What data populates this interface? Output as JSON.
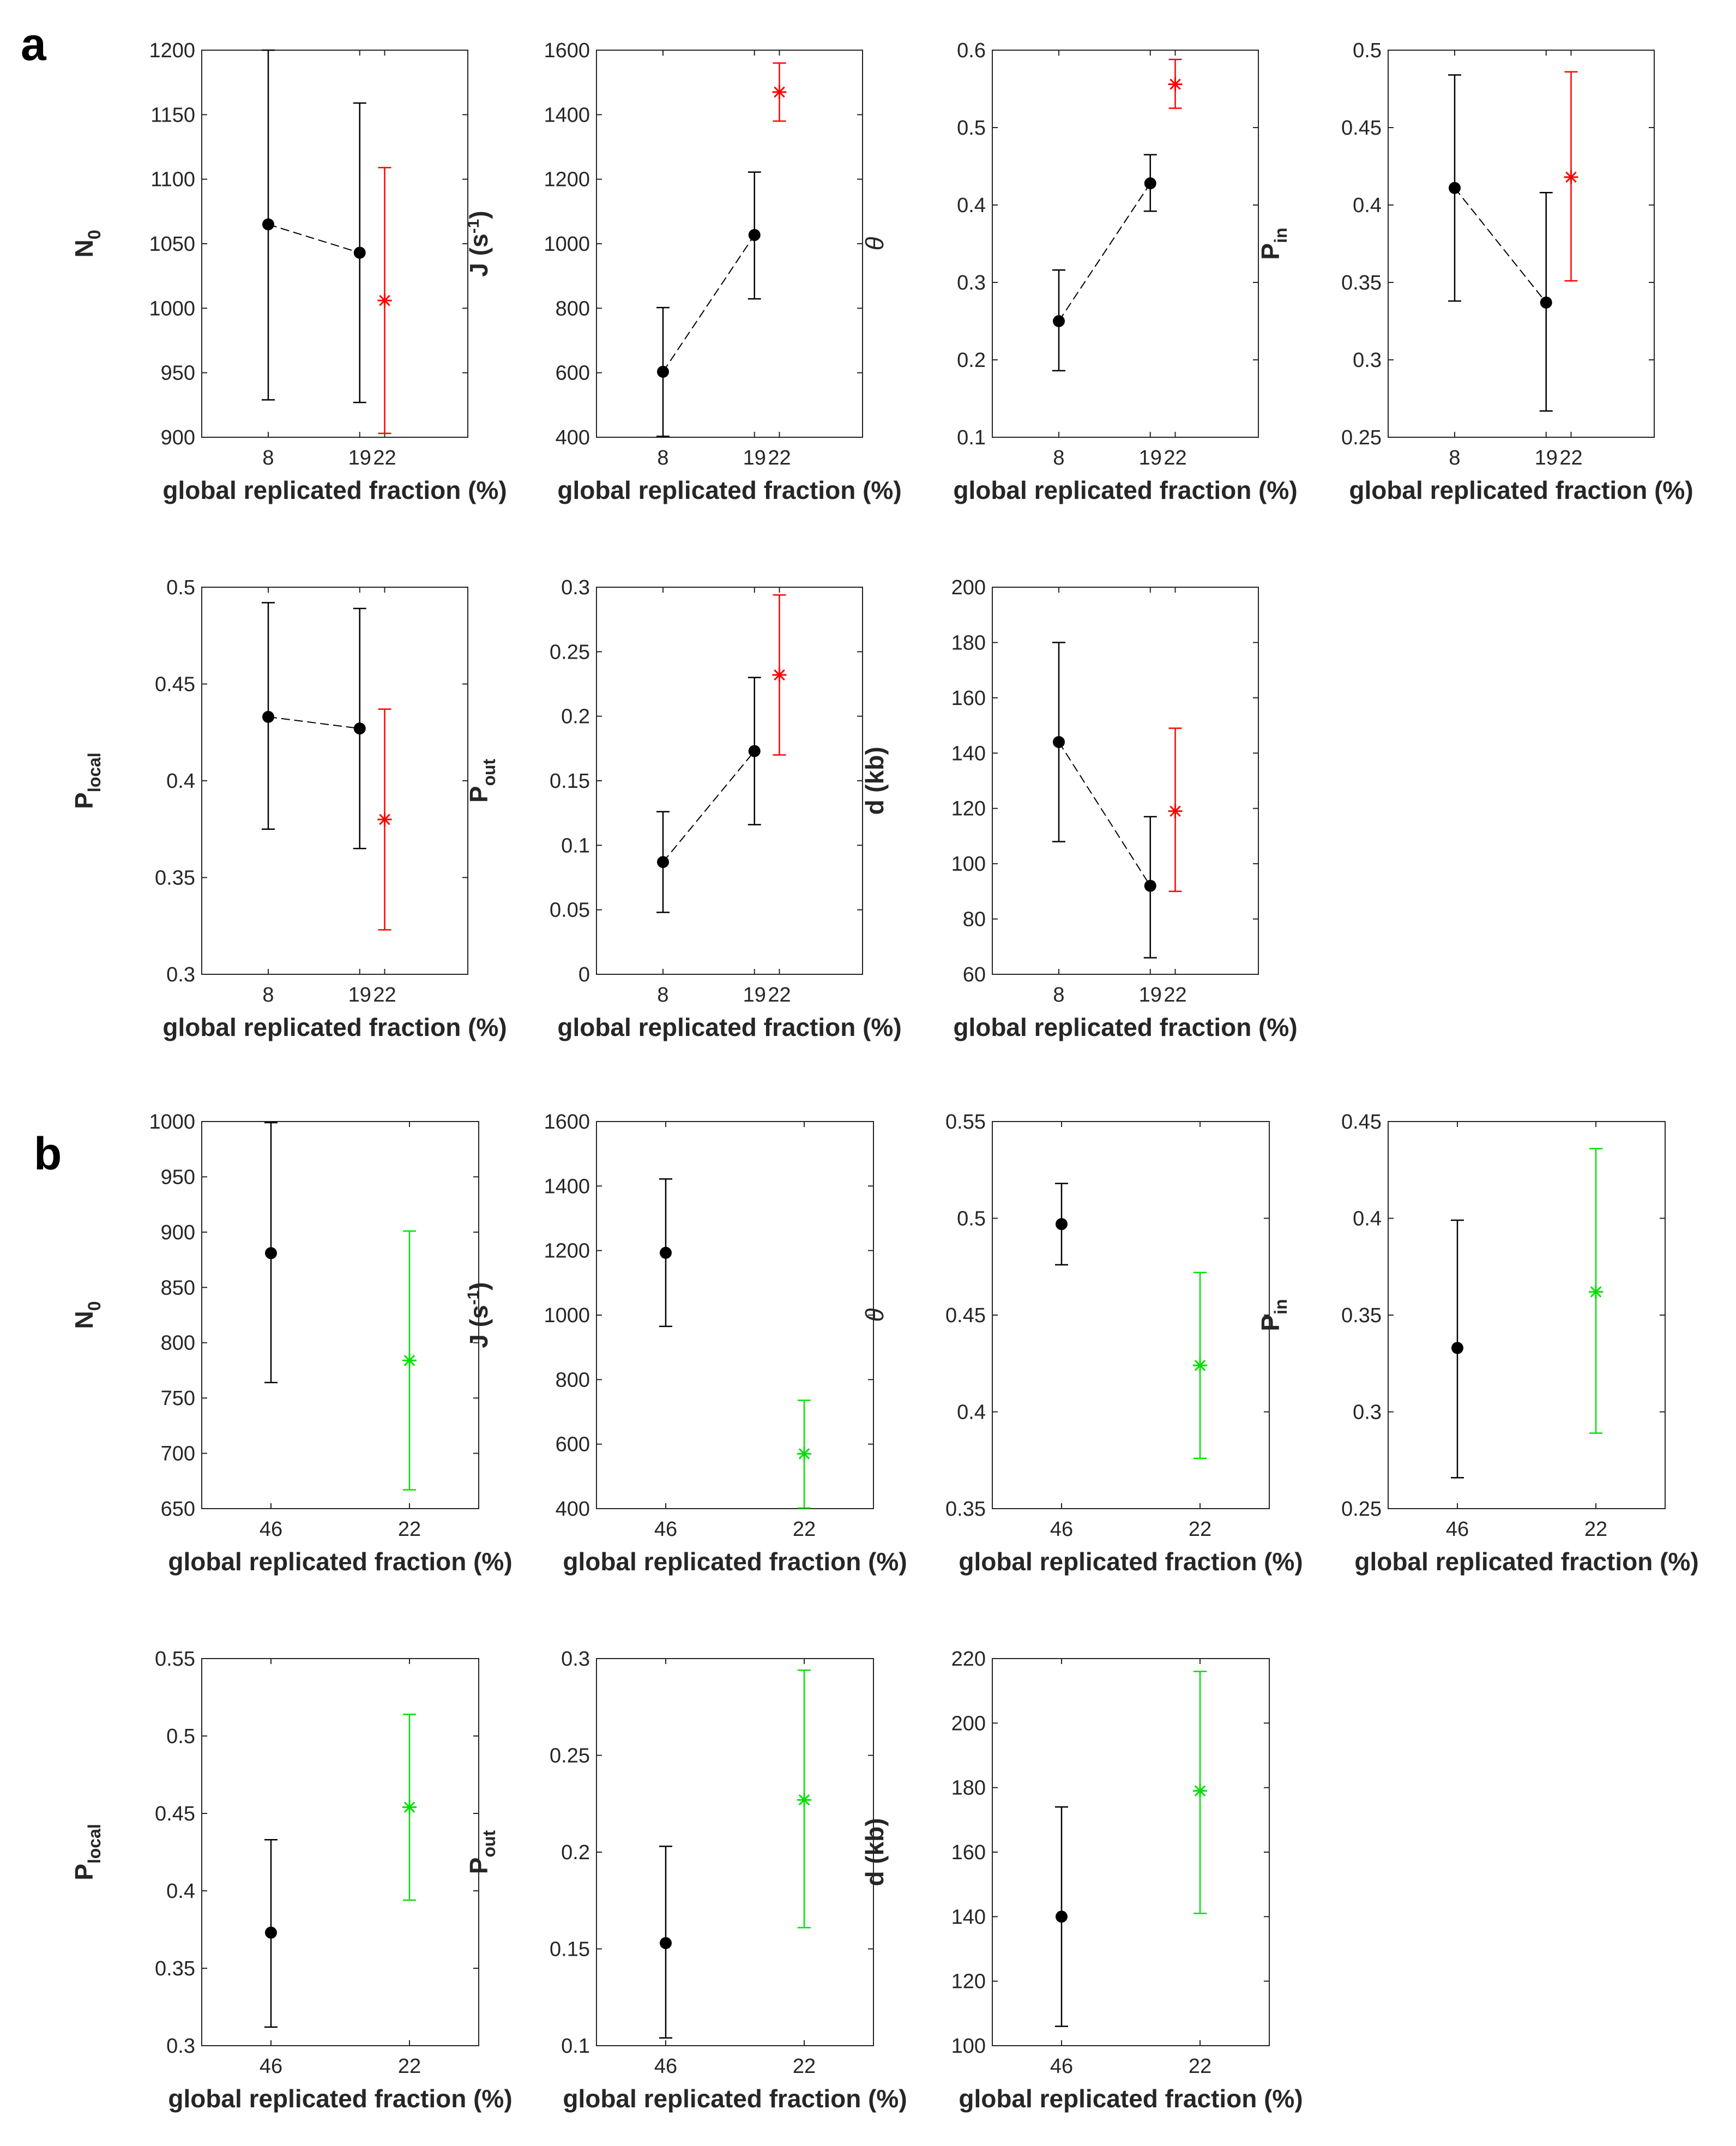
{
  "panels": {
    "a": "a",
    "b": "b"
  },
  "chart_data": [
    {
      "type": "scatter",
      "panel": "a",
      "row": 0,
      "col": 0,
      "ylabel": {
        "main": "N",
        "sub": "0",
        "sup": "",
        "italic": false
      },
      "xlabel": "global replicated fraction (%)",
      "ylim": [
        900,
        1200
      ],
      "yticks": [
        900,
        950,
        1000,
        1050,
        1100,
        1150,
        1200
      ],
      "ytick_labels": [
        "900",
        "950",
        "1000",
        "1050",
        "1100",
        "1150",
        "1200"
      ],
      "xlim": [
        0,
        32
      ],
      "xticks": [
        8,
        19,
        22
      ],
      "xtick_labels": [
        "8",
        "19",
        "22"
      ],
      "connect_first_series": true,
      "series": [
        {
          "name": "black",
          "marker": "dot",
          "color": "#000000",
          "x": [
            8,
            19
          ],
          "y": [
            1065,
            1043
          ],
          "err_low": [
            929,
            927
          ],
          "err_high": [
            1200,
            1159
          ]
        },
        {
          "name": "red",
          "marker": "star",
          "color": "#ff0000",
          "x": [
            22
          ],
          "y": [
            1006
          ],
          "err_low": [
            903
          ],
          "err_high": [
            1109
          ]
        }
      ]
    },
    {
      "type": "scatter",
      "panel": "a",
      "row": 0,
      "col": 1,
      "ylabel": {
        "main": "J (s",
        "sub": "",
        "sup": "-1",
        "tail": ")",
        "italic": false
      },
      "xlabel": "global replicated fraction (%)",
      "ylim": [
        400,
        1600
      ],
      "yticks": [
        400,
        600,
        800,
        1000,
        1200,
        1400,
        1600
      ],
      "ytick_labels": [
        "400",
        "600",
        "800",
        "1000",
        "1200",
        "1400",
        "1600"
      ],
      "xlim": [
        0,
        32
      ],
      "xticks": [
        8,
        19,
        22
      ],
      "xtick_labels": [
        "8",
        "19",
        "22"
      ],
      "connect_first_series": true,
      "series": [
        {
          "name": "black",
          "marker": "dot",
          "color": "#000000",
          "x": [
            8,
            19
          ],
          "y": [
            603,
            1027
          ],
          "err_low": [
            403,
            829
          ],
          "err_high": [
            802,
            1222
          ]
        },
        {
          "name": "red",
          "marker": "star",
          "color": "#ff0000",
          "x": [
            22
          ],
          "y": [
            1470
          ],
          "err_low": [
            1380
          ],
          "err_high": [
            1560
          ]
        }
      ]
    },
    {
      "type": "scatter",
      "panel": "a",
      "row": 0,
      "col": 2,
      "ylabel": {
        "main": "θ",
        "sub": "",
        "sup": "",
        "italic": true
      },
      "xlabel": "global replicated fraction (%)",
      "ylim": [
        0.1,
        0.6
      ],
      "yticks": [
        0.1,
        0.2,
        0.3,
        0.4,
        0.5,
        0.6
      ],
      "ytick_labels": [
        "0.1",
        "0.2",
        "0.3",
        "0.4",
        "0.5",
        "0.6"
      ],
      "xlim": [
        0,
        32
      ],
      "xticks": [
        8,
        19,
        22
      ],
      "xtick_labels": [
        "8",
        "19",
        "22"
      ],
      "connect_first_series": true,
      "series": [
        {
          "name": "black",
          "marker": "dot",
          "color": "#000000",
          "x": [
            8,
            19
          ],
          "y": [
            0.25,
            0.428
          ],
          "err_low": [
            0.186,
            0.392
          ],
          "err_high": [
            0.316,
            0.465
          ]
        },
        {
          "name": "red",
          "marker": "star",
          "color": "#ff0000",
          "x": [
            22
          ],
          "y": [
            0.556
          ],
          "err_low": [
            0.525
          ],
          "err_high": [
            0.588
          ]
        }
      ]
    },
    {
      "type": "scatter",
      "panel": "a",
      "row": 0,
      "col": 3,
      "ylabel": {
        "main": "P",
        "sub": "in",
        "sup": "",
        "italic": false
      },
      "xlabel": "global replicated fraction (%)",
      "ylim": [
        0.25,
        0.5
      ],
      "yticks": [
        0.25,
        0.3,
        0.35,
        0.4,
        0.45,
        0.5
      ],
      "ytick_labels": [
        "0.25",
        "0.3",
        "0.35",
        "0.4",
        "0.45",
        "0.5"
      ],
      "xlim": [
        0,
        32
      ],
      "xticks": [
        8,
        19,
        22
      ],
      "xtick_labels": [
        "8",
        "19",
        "22"
      ],
      "connect_first_series": true,
      "series": [
        {
          "name": "black",
          "marker": "dot",
          "color": "#000000",
          "x": [
            8,
            19
          ],
          "y": [
            0.411,
            0.337
          ],
          "err_low": [
            0.338,
            0.267
          ],
          "err_high": [
            0.484,
            0.408
          ]
        },
        {
          "name": "red",
          "marker": "star",
          "color": "#ff0000",
          "x": [
            22
          ],
          "y": [
            0.418
          ],
          "err_low": [
            0.351
          ],
          "err_high": [
            0.486
          ]
        }
      ]
    },
    {
      "type": "scatter",
      "panel": "a",
      "row": 1,
      "col": 0,
      "ylabel": {
        "main": "P",
        "sub": "local",
        "sup": "",
        "italic": false
      },
      "xlabel": "global replicated fraction (%)",
      "ylim": [
        0.3,
        0.5
      ],
      "yticks": [
        0.3,
        0.35,
        0.4,
        0.45,
        0.5
      ],
      "ytick_labels": [
        "0.3",
        "0.35",
        "0.4",
        "0.45",
        "0.5"
      ],
      "xlim": [
        0,
        32
      ],
      "xticks": [
        8,
        19,
        22
      ],
      "xtick_labels": [
        "8",
        "19",
        "22"
      ],
      "connect_first_series": true,
      "series": [
        {
          "name": "black",
          "marker": "dot",
          "color": "#000000",
          "x": [
            8,
            19
          ],
          "y": [
            0.433,
            0.427
          ],
          "err_low": [
            0.375,
            0.365
          ],
          "err_high": [
            0.492,
            0.489
          ]
        },
        {
          "name": "red",
          "marker": "star",
          "color": "#ff0000",
          "x": [
            22
          ],
          "y": [
            0.38
          ],
          "err_low": [
            0.323
          ],
          "err_high": [
            0.437
          ]
        }
      ]
    },
    {
      "type": "scatter",
      "panel": "a",
      "row": 1,
      "col": 1,
      "ylabel": {
        "main": "P",
        "sub": "out",
        "sup": "",
        "italic": false
      },
      "xlabel": "global replicated fraction (%)",
      "ylim": [
        0,
        0.3
      ],
      "yticks": [
        0,
        0.05,
        0.1,
        0.15,
        0.2,
        0.25,
        0.3
      ],
      "ytick_labels": [
        "0",
        "0.05",
        "0.1",
        "0.15",
        "0.2",
        "0.25",
        "0.3"
      ],
      "xlim": [
        0,
        32
      ],
      "xticks": [
        8,
        19,
        22
      ],
      "xtick_labels": [
        "8",
        "19",
        "22"
      ],
      "connect_first_series": true,
      "series": [
        {
          "name": "black",
          "marker": "dot",
          "color": "#000000",
          "x": [
            8,
            19
          ],
          "y": [
            0.087,
            0.173
          ],
          "err_low": [
            0.048,
            0.116
          ],
          "err_high": [
            0.126,
            0.23
          ]
        },
        {
          "name": "red",
          "marker": "star",
          "color": "#ff0000",
          "x": [
            22
          ],
          "y": [
            0.232
          ],
          "err_low": [
            0.17
          ],
          "err_high": [
            0.294
          ]
        }
      ]
    },
    {
      "type": "scatter",
      "panel": "a",
      "row": 1,
      "col": 2,
      "ylabel": {
        "main": "d (kb)",
        "sub": "",
        "sup": "",
        "italic": false
      },
      "xlabel": "global replicated fraction (%)",
      "ylim": [
        60,
        200
      ],
      "yticks": [
        60,
        80,
        100,
        120,
        140,
        160,
        180,
        200
      ],
      "ytick_labels": [
        "60",
        "80",
        "100",
        "120",
        "140",
        "160",
        "180",
        "200"
      ],
      "xlim": [
        0,
        32
      ],
      "xticks": [
        8,
        19,
        22
      ],
      "xtick_labels": [
        "8",
        "19",
        "22"
      ],
      "connect_first_series": true,
      "series": [
        {
          "name": "black",
          "marker": "dot",
          "color": "#000000",
          "x": [
            8,
            19
          ],
          "y": [
            144,
            92
          ],
          "err_low": [
            108,
            66
          ],
          "err_high": [
            180,
            117
          ]
        },
        {
          "name": "red",
          "marker": "star",
          "color": "#ff0000",
          "x": [
            22
          ],
          "y": [
            119
          ],
          "err_low": [
            90
          ],
          "err_high": [
            149
          ]
        }
      ]
    },
    {
      "type": "scatter",
      "panel": "b",
      "row": 0,
      "col": 0,
      "ylabel": {
        "main": "N",
        "sub": "0",
        "sup": "",
        "italic": false
      },
      "xlabel": "global replicated fraction (%)",
      "ylim": [
        650,
        1000
      ],
      "yticks": [
        650,
        700,
        750,
        800,
        850,
        900,
        950,
        1000
      ],
      "ytick_labels": [
        "650",
        "700",
        "750",
        "800",
        "850",
        "900",
        "950",
        "1000"
      ],
      "xlim": [
        0,
        4
      ],
      "xticks": [
        1,
        3
      ],
      "xtick_labels": [
        "46",
        "22"
      ],
      "connect_first_series": false,
      "series": [
        {
          "name": "black",
          "marker": "dot",
          "color": "#000000",
          "x": [
            1
          ],
          "y": [
            881
          ],
          "err_low": [
            764
          ],
          "err_high": [
            999
          ]
        },
        {
          "name": "green",
          "marker": "star",
          "color": "#00e000",
          "x": [
            3
          ],
          "y": [
            784
          ],
          "err_low": [
            667
          ],
          "err_high": [
            901
          ]
        }
      ]
    },
    {
      "type": "scatter",
      "panel": "b",
      "row": 0,
      "col": 1,
      "ylabel": {
        "main": "J (s",
        "sub": "",
        "sup": "-1",
        "tail": ")",
        "italic": false
      },
      "xlabel": "global replicated fraction (%)",
      "ylim": [
        400,
        1600
      ],
      "yticks": [
        400,
        600,
        800,
        1000,
        1200,
        1400,
        1600
      ],
      "ytick_labels": [
        "400",
        "600",
        "800",
        "1000",
        "1200",
        "1400",
        "1600"
      ],
      "xlim": [
        0,
        4
      ],
      "xticks": [
        1,
        3
      ],
      "xtick_labels": [
        "46",
        "22"
      ],
      "connect_first_series": false,
      "series": [
        {
          "name": "black",
          "marker": "dot",
          "color": "#000000",
          "x": [
            1
          ],
          "y": [
            1193
          ],
          "err_low": [
            965
          ],
          "err_high": [
            1422
          ]
        },
        {
          "name": "green",
          "marker": "star",
          "color": "#00e000",
          "x": [
            3
          ],
          "y": [
            570
          ],
          "err_low": [
            402
          ],
          "err_high": [
            736
          ]
        }
      ]
    },
    {
      "type": "scatter",
      "panel": "b",
      "row": 0,
      "col": 2,
      "ylabel": {
        "main": "θ",
        "sub": "",
        "sup": "",
        "italic": true
      },
      "xlabel": "global replicated fraction (%)",
      "ylim": [
        0.35,
        0.55
      ],
      "yticks": [
        0.35,
        0.4,
        0.45,
        0.5,
        0.55
      ],
      "ytick_labels": [
        "0.35",
        "0.4",
        "0.45",
        "0.5",
        "0.55"
      ],
      "xlim": [
        0,
        4
      ],
      "xticks": [
        1,
        3
      ],
      "xtick_labels": [
        "46",
        "22"
      ],
      "connect_first_series": false,
      "series": [
        {
          "name": "black",
          "marker": "dot",
          "color": "#000000",
          "x": [
            1
          ],
          "y": [
            0.497
          ],
          "err_low": [
            0.476
          ],
          "err_high": [
            0.518
          ]
        },
        {
          "name": "green",
          "marker": "star",
          "color": "#00e000",
          "x": [
            3
          ],
          "y": [
            0.424
          ],
          "err_low": [
            0.376
          ],
          "err_high": [
            0.472
          ]
        }
      ]
    },
    {
      "type": "scatter",
      "panel": "b",
      "row": 0,
      "col": 3,
      "ylabel": {
        "main": "P",
        "sub": "in",
        "sup": "",
        "italic": false
      },
      "xlabel": "global replicated fraction (%)",
      "ylim": [
        0.25,
        0.45
      ],
      "yticks": [
        0.25,
        0.3,
        0.35,
        0.4,
        0.45
      ],
      "ytick_labels": [
        "0.25",
        "0.3",
        "0.35",
        "0.4",
        "0.45"
      ],
      "xlim": [
        0,
        4
      ],
      "xticks": [
        1,
        3
      ],
      "xtick_labels": [
        "46",
        "22"
      ],
      "connect_first_series": false,
      "series": [
        {
          "name": "black",
          "marker": "dot",
          "color": "#000000",
          "x": [
            1
          ],
          "y": [
            0.333
          ],
          "err_low": [
            0.266
          ],
          "err_high": [
            0.399
          ]
        },
        {
          "name": "green",
          "marker": "star",
          "color": "#00e000",
          "x": [
            3
          ],
          "y": [
            0.362
          ],
          "err_low": [
            0.289
          ],
          "err_high": [
            0.436
          ]
        }
      ]
    },
    {
      "type": "scatter",
      "panel": "b",
      "row": 1,
      "col": 0,
      "ylabel": {
        "main": "P",
        "sub": "local",
        "sup": "",
        "italic": false
      },
      "xlabel": "global replicated fraction (%)",
      "ylim": [
        0.3,
        0.55
      ],
      "yticks": [
        0.3,
        0.35,
        0.4,
        0.45,
        0.5,
        0.55
      ],
      "ytick_labels": [
        "0.3",
        "0.35",
        "0.4",
        "0.45",
        "0.5",
        "0.55"
      ],
      "xlim": [
        0,
        4
      ],
      "xticks": [
        1,
        3
      ],
      "xtick_labels": [
        "46",
        "22"
      ],
      "connect_first_series": false,
      "series": [
        {
          "name": "black",
          "marker": "dot",
          "color": "#000000",
          "x": [
            1
          ],
          "y": [
            0.373
          ],
          "err_low": [
            0.312
          ],
          "err_high": [
            0.433
          ]
        },
        {
          "name": "green",
          "marker": "star",
          "color": "#00e000",
          "x": [
            3
          ],
          "y": [
            0.454
          ],
          "err_low": [
            0.394
          ],
          "err_high": [
            0.514
          ]
        }
      ]
    },
    {
      "type": "scatter",
      "panel": "b",
      "row": 1,
      "col": 1,
      "ylabel": {
        "main": "P",
        "sub": "out",
        "sup": "",
        "italic": false
      },
      "xlabel": "global replicated fraction (%)",
      "ylim": [
        0.1,
        0.3
      ],
      "yticks": [
        0.1,
        0.15,
        0.2,
        0.25,
        0.3
      ],
      "ytick_labels": [
        "0.1",
        "0.15",
        "0.2",
        "0.25",
        "0.3"
      ],
      "xlim": [
        0,
        4
      ],
      "xticks": [
        1,
        3
      ],
      "xtick_labels": [
        "46",
        "22"
      ],
      "connect_first_series": false,
      "series": [
        {
          "name": "black",
          "marker": "dot",
          "color": "#000000",
          "x": [
            1
          ],
          "y": [
            0.153
          ],
          "err_low": [
            0.104
          ],
          "err_high": [
            0.203
          ]
        },
        {
          "name": "green",
          "marker": "star",
          "color": "#00e000",
          "x": [
            3
          ],
          "y": [
            0.227
          ],
          "err_low": [
            0.161
          ],
          "err_high": [
            0.294
          ]
        }
      ]
    },
    {
      "type": "scatter",
      "panel": "b",
      "row": 1,
      "col": 2,
      "ylabel": {
        "main": "d (kb)",
        "sub": "",
        "sup": "",
        "italic": false
      },
      "xlabel": "global replicated fraction (%)",
      "ylim": [
        100,
        220
      ],
      "yticks": [
        100,
        120,
        140,
        160,
        180,
        200,
        220
      ],
      "ytick_labels": [
        "100",
        "120",
        "140",
        "160",
        "180",
        "200",
        "220"
      ],
      "xlim": [
        0,
        4
      ],
      "xticks": [
        1,
        3
      ],
      "xtick_labels": [
        "46",
        "22"
      ],
      "connect_first_series": false,
      "series": [
        {
          "name": "black",
          "marker": "dot",
          "color": "#000000",
          "x": [
            1
          ],
          "y": [
            140
          ],
          "err_low": [
            106
          ],
          "err_high": [
            174
          ]
        },
        {
          "name": "green",
          "marker": "star",
          "color": "#00e000",
          "x": [
            3
          ],
          "y": [
            179
          ],
          "err_low": [
            141
          ],
          "err_high": [
            216
          ]
        }
      ]
    }
  ]
}
